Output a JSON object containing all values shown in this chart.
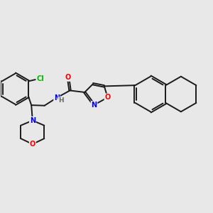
{
  "background_color": "#e8e8e8",
  "bond_color": "#1a1a1a",
  "bond_width": 1.4,
  "atom_colors": {
    "Cl": "#00bb00",
    "N": "#0000ee",
    "O": "#ee0000",
    "C": "#1a1a1a",
    "H": "#666666"
  }
}
